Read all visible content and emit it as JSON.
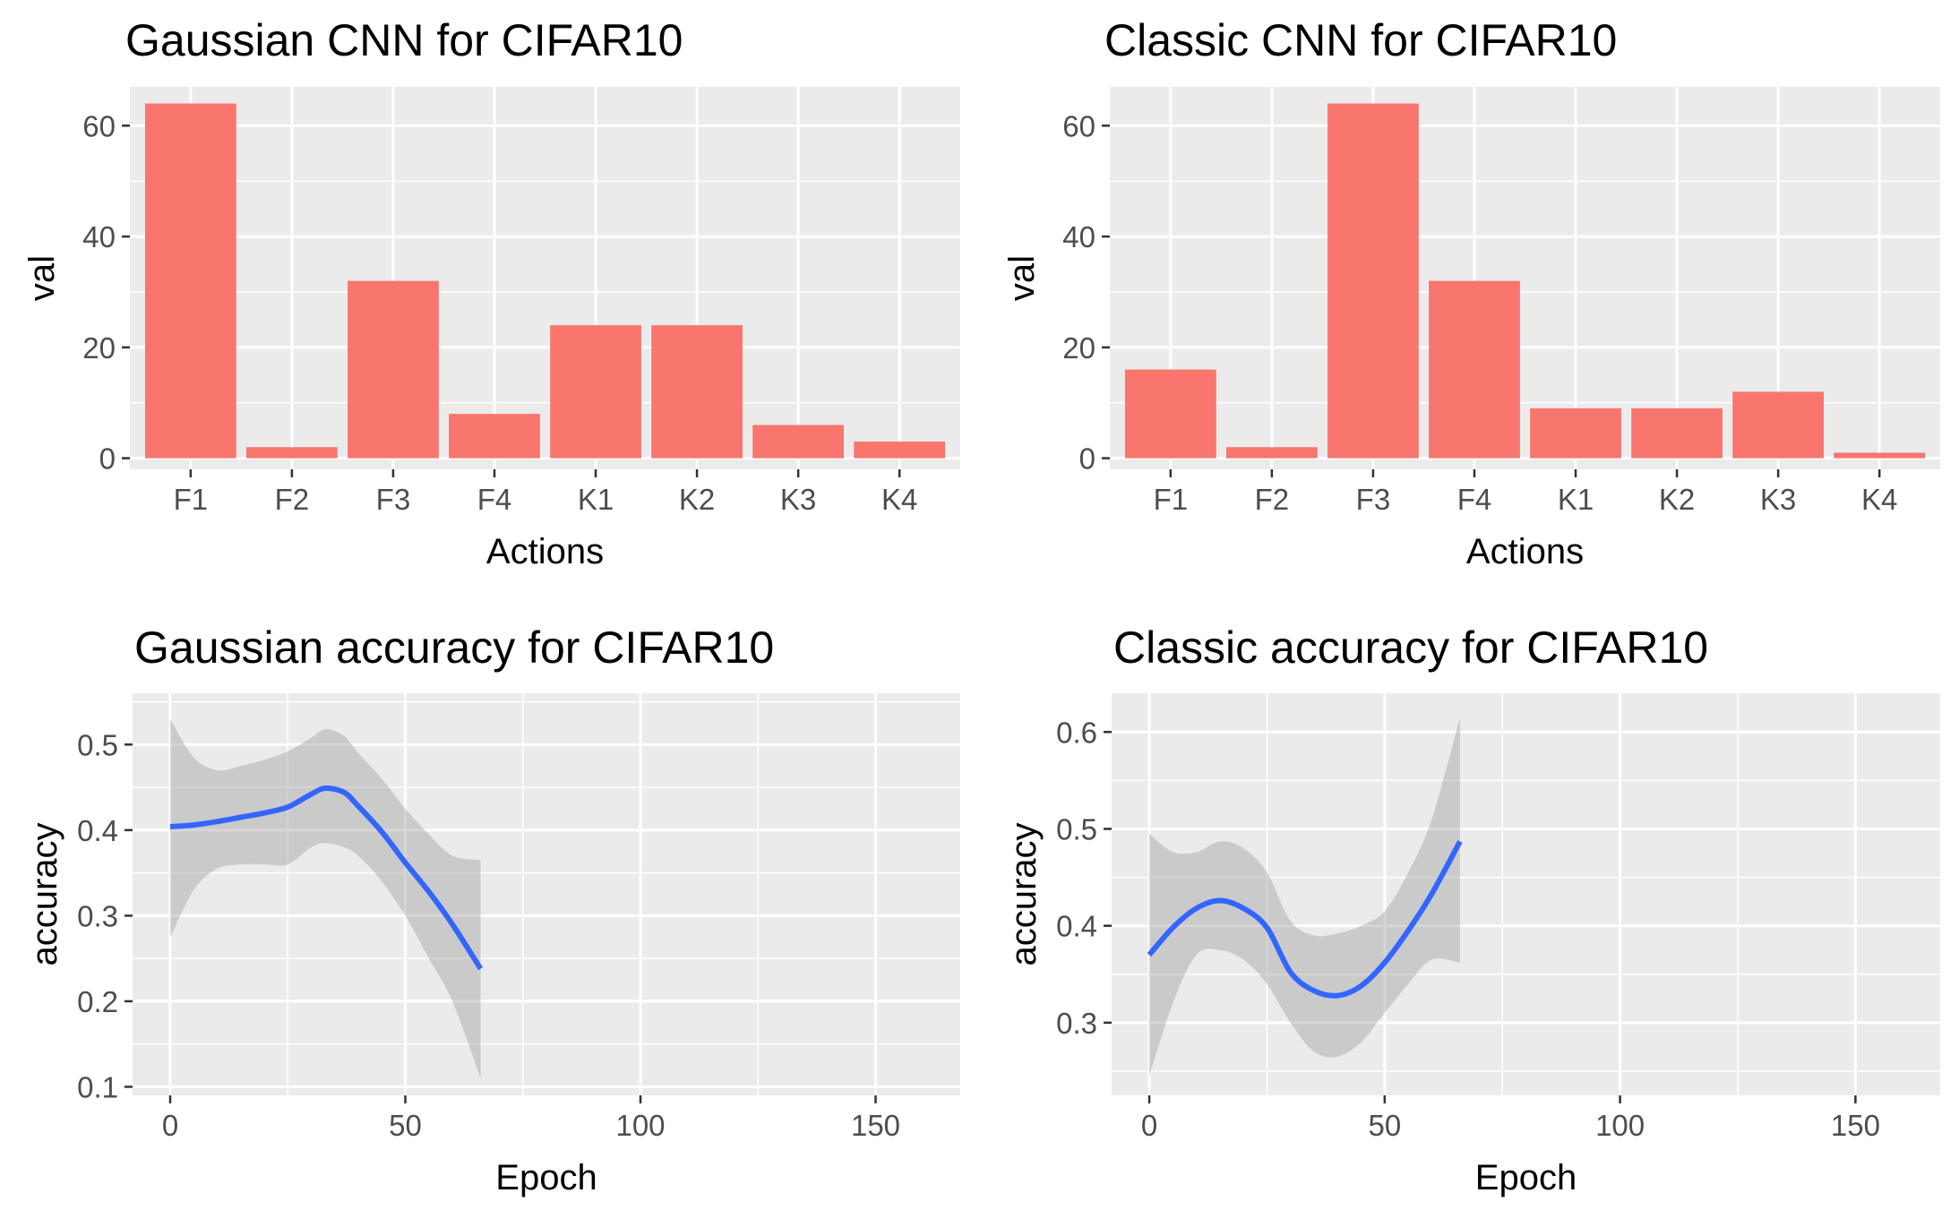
{
  "chart_data": [
    {
      "type": "bar",
      "title": "Gaussian CNN for  CIFAR10",
      "xlabel": "Actions",
      "ylabel": "val",
      "categories": [
        "F1",
        "F2",
        "F3",
        "F4",
        "K1",
        "K2",
        "K3",
        "K4"
      ],
      "values": [
        64,
        2,
        32,
        8,
        24,
        24,
        6,
        3
      ],
      "ylim": [
        -2,
        67
      ],
      "yticks": [
        0,
        20,
        40,
        60
      ],
      "grid": true,
      "colors": {
        "bar": "#f8766d",
        "panel": "#ebebeb",
        "grid": "#ffffff"
      }
    },
    {
      "type": "bar",
      "title": "Classic CNN for  CIFAR10",
      "xlabel": "Actions",
      "ylabel": "val",
      "categories": [
        "F1",
        "F2",
        "F3",
        "F4",
        "K1",
        "K2",
        "K3",
        "K4"
      ],
      "values": [
        16,
        2,
        64,
        32,
        9,
        9,
        12,
        1
      ],
      "ylim": [
        -2,
        67
      ],
      "yticks": [
        0,
        20,
        40,
        60
      ],
      "grid": true,
      "colors": {
        "bar": "#f8766d",
        "panel": "#ebebeb",
        "grid": "#ffffff"
      }
    },
    {
      "type": "line",
      "title": "Gaussian accuracy for  CIFAR10",
      "xlabel": "Epoch",
      "ylabel": "accuracy",
      "xlim": [
        -8,
        168
      ],
      "ylim": [
        0.09,
        0.56
      ],
      "xticks": [
        0,
        50,
        100,
        150
      ],
      "yticks": [
        0.1,
        0.2,
        0.3,
        0.4,
        0.5
      ],
      "yticklabels": [
        "0.1",
        "0.2",
        "0.3",
        "0.4",
        "0.5"
      ],
      "grid": true,
      "x": [
        0,
        5,
        10,
        15,
        20,
        25,
        30,
        33,
        37,
        40,
        45,
        50,
        55,
        60,
        66
      ],
      "series": [
        {
          "values": [
            0.404,
            0.406,
            0.41,
            0.415,
            0.42,
            0.427,
            0.442,
            0.449,
            0.444,
            0.428,
            0.398,
            0.362,
            0.328,
            0.29,
            0.238
          ],
          "lower": [
            0.275,
            0.33,
            0.355,
            0.36,
            0.36,
            0.36,
            0.38,
            0.385,
            0.38,
            0.37,
            0.34,
            0.3,
            0.25,
            0.2,
            0.11
          ],
          "upper": [
            0.53,
            0.485,
            0.47,
            0.475,
            0.482,
            0.492,
            0.508,
            0.518,
            0.51,
            0.49,
            0.46,
            0.425,
            0.395,
            0.37,
            0.365
          ]
        }
      ],
      "colors": {
        "line": "#3366ff",
        "ribbon": "#999999",
        "panel": "#ebebeb",
        "grid": "#ffffff"
      }
    },
    {
      "type": "line",
      "title": "Classic accuracy for  CIFAR10",
      "xlabel": "Epoch",
      "ylabel": "accuracy",
      "xlim": [
        -8,
        168
      ],
      "ylim": [
        0.225,
        0.64
      ],
      "xticks": [
        0,
        50,
        100,
        150
      ],
      "yticks": [
        0.3,
        0.4,
        0.5,
        0.6
      ],
      "yticklabels": [
        "0.3",
        "0.4",
        "0.5",
        "0.6"
      ],
      "grid": true,
      "x": [
        0,
        5,
        10,
        15,
        20,
        25,
        30,
        35,
        40,
        45,
        50,
        55,
        60,
        66
      ],
      "series": [
        {
          "values": [
            0.37,
            0.398,
            0.418,
            0.426,
            0.418,
            0.398,
            0.352,
            0.333,
            0.328,
            0.338,
            0.362,
            0.395,
            0.433,
            0.487
          ],
          "lower": [
            0.245,
            0.32,
            0.37,
            0.375,
            0.365,
            0.34,
            0.3,
            0.27,
            0.265,
            0.28,
            0.31,
            0.34,
            0.365,
            0.362
          ],
          "upper": [
            0.495,
            0.476,
            0.476,
            0.487,
            0.48,
            0.455,
            0.405,
            0.39,
            0.392,
            0.4,
            0.415,
            0.455,
            0.51,
            0.615
          ]
        }
      ],
      "colors": {
        "line": "#3366ff",
        "ribbon": "#999999",
        "panel": "#ebebeb",
        "grid": "#ffffff"
      }
    }
  ]
}
